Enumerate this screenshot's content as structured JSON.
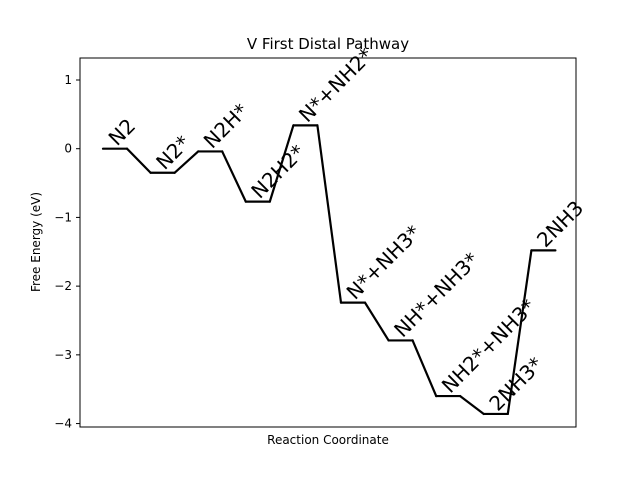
{
  "chart_data": {
    "type": "line",
    "title": "V First Distal Pathway",
    "xlabel": "Reaction Coordinate",
    "ylabel": "Free Energy (eV)",
    "ylim": [
      -4.05,
      1.32
    ],
    "yticks": [
      1,
      0,
      -1,
      -2,
      -3,
      -4
    ],
    "ytick_labels": [
      "1",
      "0",
      "−1",
      "−2",
      "−3",
      "−4"
    ],
    "grid": false,
    "line_color": "#000000",
    "steps": [
      {
        "label": "N2",
        "value": 0.0
      },
      {
        "label": "N2*",
        "value": -0.35
      },
      {
        "label": "N2H*",
        "value": -0.04
      },
      {
        "label": "N2H2*",
        "value": -0.77
      },
      {
        "label": "N*+NH2*",
        "value": 0.34
      },
      {
        "label": "N*+NH3*",
        "value": -2.24
      },
      {
        "label": "NH*+NH3*",
        "value": -2.79
      },
      {
        "label": "NH2*+NH3*",
        "value": -3.6
      },
      {
        "label": "2NH3*",
        "value": -3.86
      },
      {
        "label": "2NH3",
        "value": -1.48
      }
    ]
  }
}
